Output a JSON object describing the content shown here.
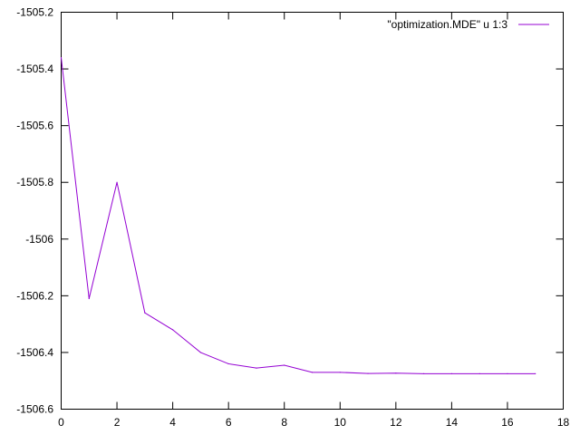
{
  "chart_data": {
    "type": "line",
    "title": "",
    "xlabel": "",
    "ylabel": "",
    "xlim": [
      0,
      18
    ],
    "ylim": [
      -1506.6,
      -1505.2
    ],
    "xticks": [
      0,
      2,
      4,
      6,
      8,
      10,
      12,
      14,
      16,
      18
    ],
    "xtick_labels": [
      "0",
      "2",
      "4",
      "6",
      "8",
      "10",
      "12",
      "14",
      "16",
      "18"
    ],
    "yticks": [
      -1505.2,
      -1505.4,
      -1505.6,
      -1505.8,
      -1506,
      -1506.2,
      -1506.4,
      -1506.6
    ],
    "ytick_labels": [
      "-1505.2",
      "-1505.4",
      "-1505.6",
      "-1505.8",
      "-1506",
      "-1506.2",
      "-1506.4",
      "-1506.6"
    ],
    "grid": false,
    "legend_position": "top-right",
    "series": [
      {
        "name": "\"optimization.MDE\" u 1:3",
        "color": "#9400d3",
        "x": [
          0,
          1,
          2,
          3,
          4,
          5,
          6,
          7,
          8,
          9,
          10,
          11,
          12,
          13,
          14,
          15,
          16,
          17
        ],
        "y": [
          -1505.36,
          -1506.21,
          -1505.8,
          -1506.26,
          -1506.32,
          -1506.4,
          -1506.44,
          -1506.455,
          -1506.445,
          -1506.47,
          -1506.47,
          -1506.474,
          -1506.473,
          -1506.475,
          -1506.475,
          -1506.475,
          -1506.475,
          -1506.475
        ]
      }
    ]
  }
}
